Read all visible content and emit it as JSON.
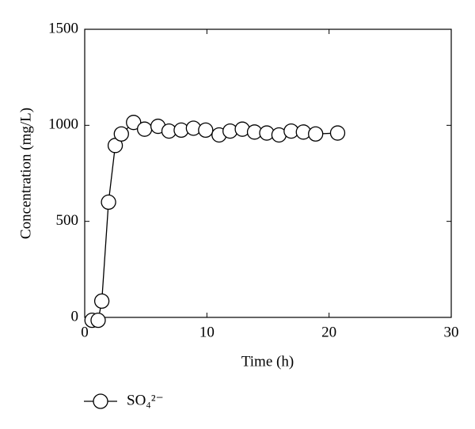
{
  "chart_data": {
    "type": "line",
    "xlabel": "Time (h)",
    "ylabel": "Concentration (mg/L)",
    "xlim": [
      0,
      30
    ],
    "xticks": [
      0,
      10,
      20,
      30
    ],
    "ylim": [
      0,
      1500
    ],
    "yticks": [
      0,
      500,
      1000,
      1500
    ],
    "series": [
      {
        "name": "SO₄²⁻",
        "color": "#000000",
        "marker": "circle",
        "x": [
          0.6,
          1.1,
          1.4,
          1.95,
          2.5,
          3,
          4,
          4.9,
          6,
          6.9,
          7.9,
          8.9,
          9.9,
          11,
          11.9,
          12.9,
          13.9,
          14.9,
          15.9,
          16.9,
          17.9,
          18.9,
          20.7
        ],
        "values": [
          -15,
          -15,
          85,
          600,
          895,
          955,
          1015,
          980,
          995,
          970,
          975,
          985,
          975,
          950,
          970,
          980,
          965,
          960,
          950,
          970,
          965,
          955,
          960
        ]
      }
    ]
  }
}
